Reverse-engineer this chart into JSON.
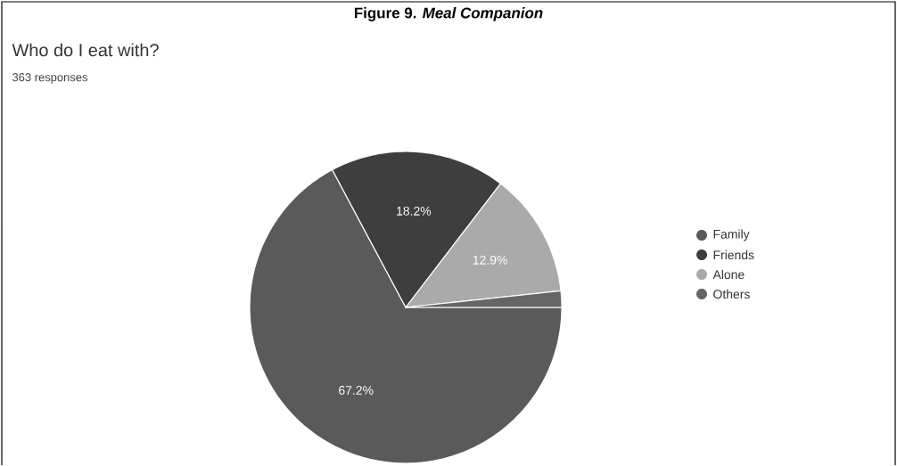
{
  "chart_data": {
    "type": "pie",
    "title": "Who do I eat with?",
    "subtitle": "363 responses",
    "annotations": [
      "Figure 9. *Meal Companion*"
    ],
    "categories": [
      "Family",
      "Friends",
      "Alone",
      "Others"
    ],
    "values": [
      67.2,
      18.2,
      12.9,
      1.7
    ],
    "value_labels": [
      "67.2%",
      "18.2%",
      "12.9%",
      null
    ],
    "colors": [
      "#5a5a5a",
      "#3e3e3e",
      "#aaaaaa",
      "#656565"
    ],
    "legend": "right"
  }
}
